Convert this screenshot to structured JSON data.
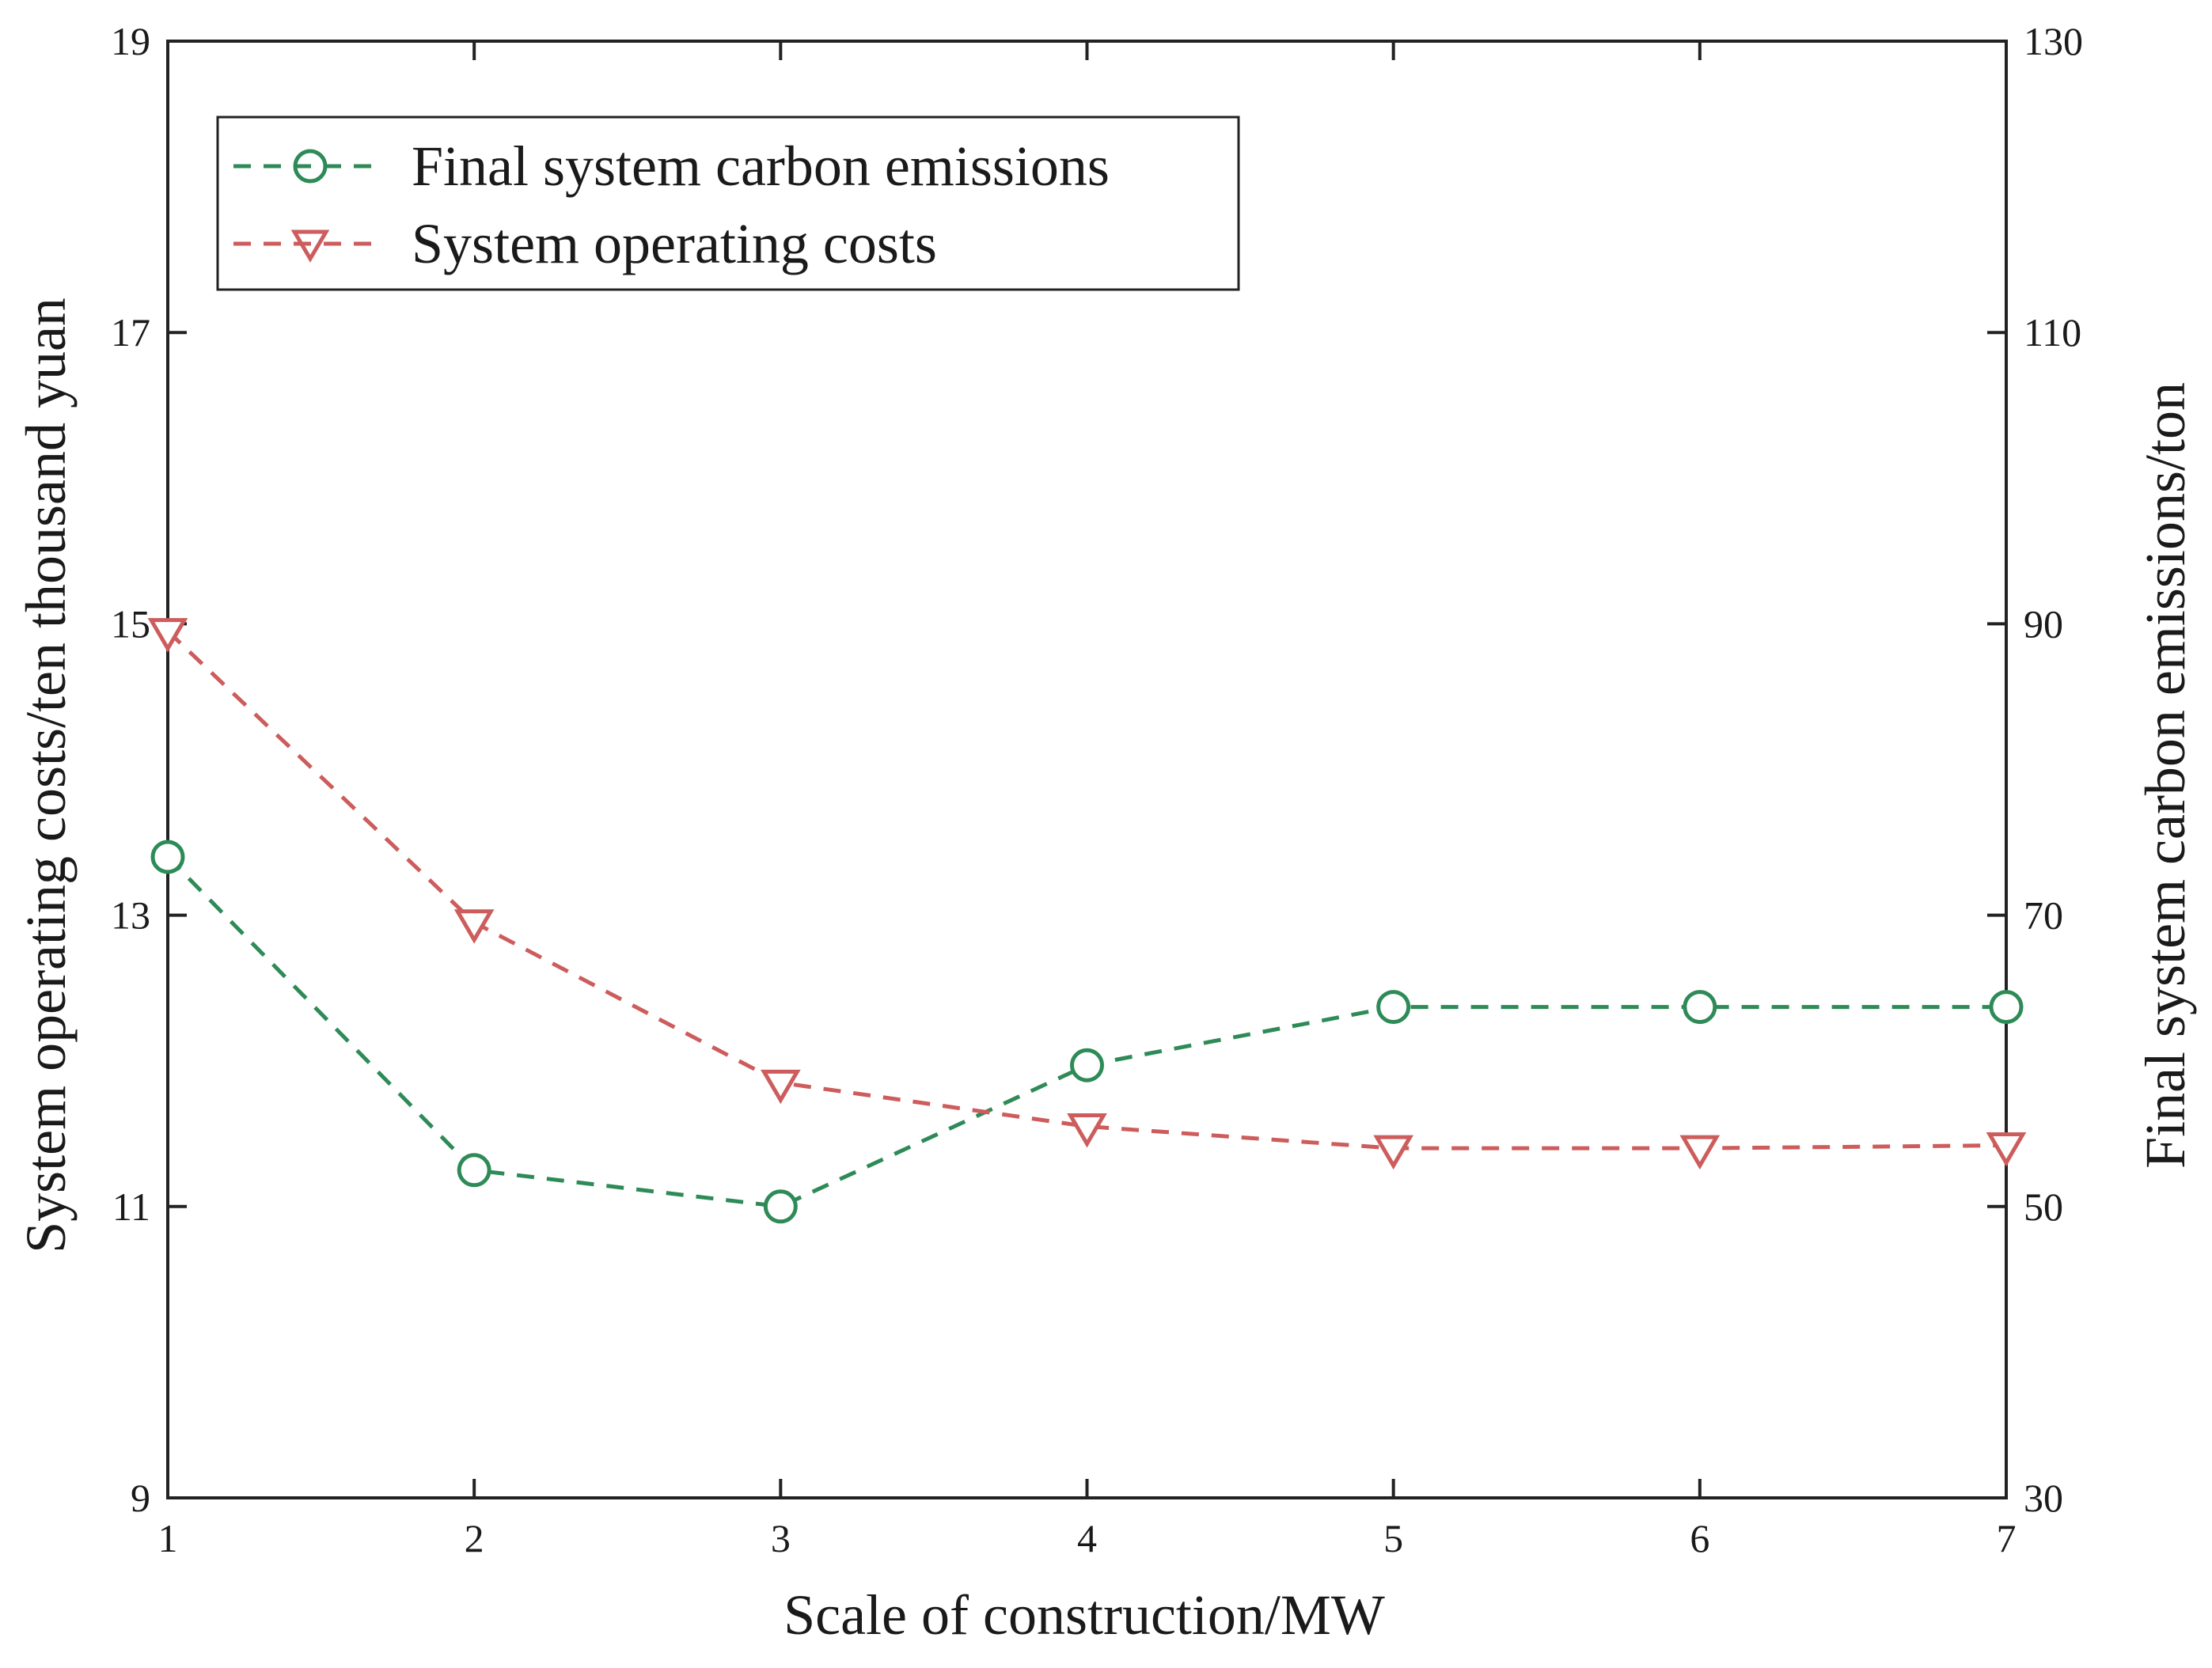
{
  "chart_data": {
    "type": "line",
    "x": [
      1,
      2,
      3,
      4,
      5,
      6,
      7
    ],
    "xlabel": "Scale of construction/MW",
    "ylabel_left": "System operating costs/ten thousand yuan",
    "ylabel_right": "Final system carbon emissions/ton",
    "xlim": [
      1,
      7
    ],
    "ylim_left": [
      9,
      19
    ],
    "ylim_right": [
      30,
      130
    ],
    "xticks": [
      "1",
      "2",
      "3",
      "4",
      "5",
      "6",
      "7"
    ],
    "yticks_left": [
      "9",
      "11",
      "13",
      "15",
      "17",
      "19"
    ],
    "yticks_right": [
      "30",
      "50",
      "70",
      "90",
      "110",
      "130"
    ],
    "grid": false,
    "legend_position": "top-left",
    "series": [
      {
        "name": "Final system carbon emissions",
        "axis": "right",
        "marker": "circle",
        "line_style": "dashed",
        "color": "#2e8b57",
        "values": [
          74,
          52.5,
          50,
          59.7,
          63.7,
          63.7,
          63.7
        ]
      },
      {
        "name": "System operating costs",
        "axis": "left",
        "marker": "triangle-down",
        "line_style": "dashed",
        "color": "#cd5c5c",
        "values": [
          14.95,
          12.95,
          11.85,
          11.55,
          11.4,
          11.4,
          11.42
        ]
      }
    ]
  }
}
